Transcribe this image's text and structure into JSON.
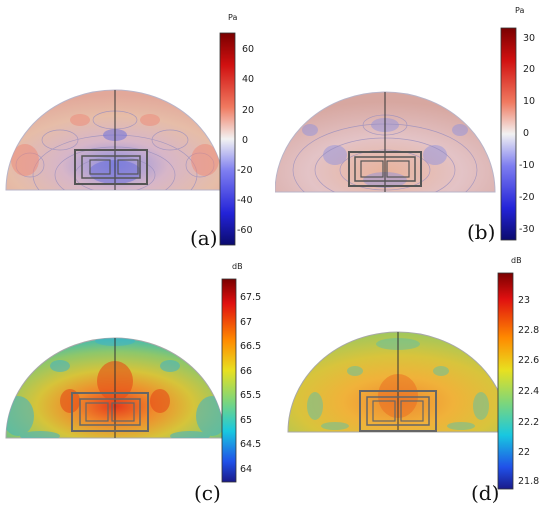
{
  "panels": [
    {
      "id": "a",
      "label": "(a)",
      "unit": "Pa",
      "colormap": "diverging",
      "ticks": [
        "60",
        "40",
        "20",
        "0",
        "-20",
        "-40",
        "-60"
      ],
      "range": [
        -70,
        70
      ]
    },
    {
      "id": "b",
      "label": "(b)",
      "unit": "Pa",
      "colormap": "diverging",
      "ticks": [
        "30",
        "20",
        "10",
        "0",
        "-10",
        "-20",
        "-30"
      ],
      "range": [
        -34,
        34
      ]
    },
    {
      "id": "c",
      "label": "(c)",
      "unit": "dB",
      "colormap": "rainbow",
      "ticks": [
        "67.5",
        "67",
        "66.5",
        "66",
        "65.5",
        "65",
        "64.5",
        "64"
      ],
      "range": [
        63.8,
        67.9
      ]
    },
    {
      "id": "d",
      "label": "(d)",
      "unit": "dB",
      "colormap": "rainbow",
      "ticks": [
        "23",
        "22.8",
        "22.6",
        "22.4",
        "22.2",
        "22",
        "21.8"
      ],
      "range": [
        21.7,
        23.2
      ]
    }
  ],
  "colors": {
    "diverging_top": "#7a0000",
    "diverging_mid": "#f2f2f2",
    "diverging_bottom": "#0b0b6e",
    "rainbow_top": "#7a0000",
    "rainbow_bottom": "#1a1a8a"
  }
}
